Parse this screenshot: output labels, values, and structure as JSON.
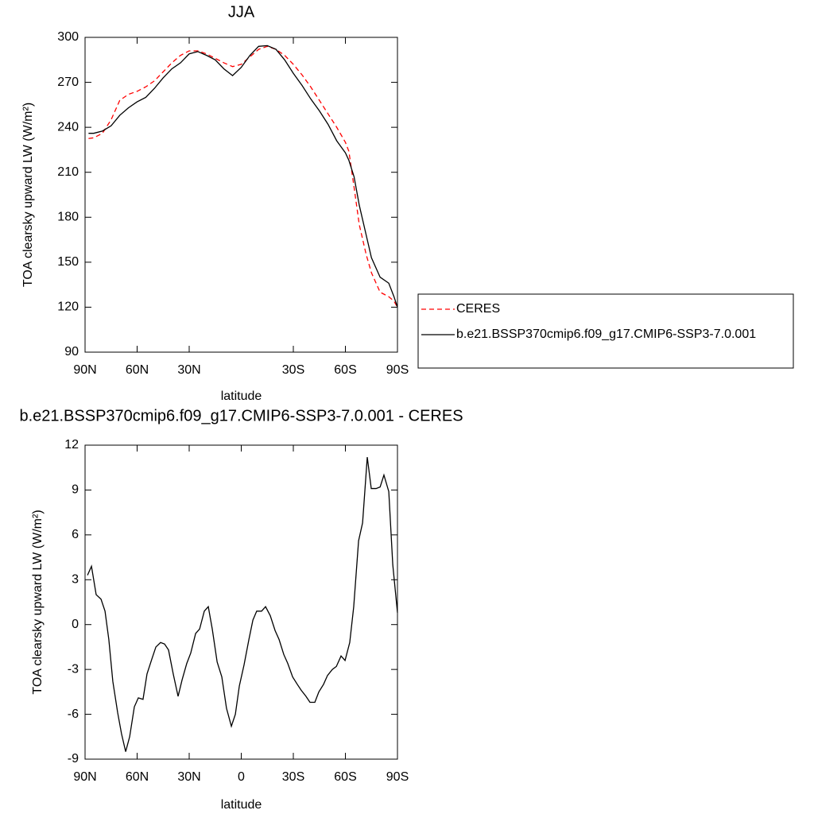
{
  "chart_data": [
    {
      "type": "line",
      "title": "JJA",
      "xlabel": "latitude",
      "ylabel": "TOA clearsky upward LW (W/m²)",
      "x": [
        88,
        85,
        80,
        75,
        70,
        65,
        60,
        55,
        50,
        45,
        40,
        35,
        30,
        25,
        20,
        15,
        10,
        5,
        0,
        -5,
        -10,
        -15,
        -20,
        -25,
        -30,
        -35,
        -40,
        -45,
        -50,
        -55,
        -60,
        -62,
        -65,
        -68,
        -72,
        -75,
        -80,
        -85,
        -88,
        -90
      ],
      "series": [
        {
          "name": "CERES",
          "color": "#ff0000",
          "style": "dashed",
          "values": [
            232.5,
            233,
            236,
            245,
            258,
            262,
            264,
            267,
            271,
            277,
            283,
            288,
            291,
            291,
            289,
            286,
            283,
            280.5,
            282,
            287,
            292,
            294,
            292,
            288,
            282,
            275,
            267,
            258,
            249,
            240,
            230,
            224,
            200,
            175,
            155,
            143,
            130,
            127,
            124,
            120
          ]
        },
        {
          "name": "b.e21.BSSP370cmip6.f09_g17.CMIP6-SSP3-7.0.001",
          "color": "#000000",
          "style": "solid",
          "values": [
            236,
            236,
            237.5,
            241,
            248,
            253,
            257,
            260,
            266,
            273,
            279,
            283,
            289,
            290.5,
            288,
            285,
            279,
            274.5,
            280,
            288,
            294,
            294.5,
            292,
            285,
            276,
            268,
            259,
            251,
            242,
            231,
            223,
            218,
            207,
            188,
            168,
            153,
            140,
            136,
            127,
            120
          ]
        }
      ],
      "xlim": [
        90,
        -90
      ],
      "xticks": [
        {
          "value": 90,
          "label": "90N"
        },
        {
          "value": 60,
          "label": "60N"
        },
        {
          "value": 30,
          "label": "30N"
        },
        {
          "value": -30,
          "label": "30S"
        },
        {
          "value": -60,
          "label": "60S"
        },
        {
          "value": -90,
          "label": "90S"
        }
      ],
      "ylim": [
        90,
        300
      ],
      "yticks": [
        90,
        120,
        150,
        180,
        210,
        240,
        270,
        300
      ],
      "legend": "right"
    },
    {
      "type": "line",
      "title": "b.e21.BSSP370cmip6.f09_g17.CMIP6-SSP3-7.0.001 - CERES",
      "xlabel": "latitude",
      "ylabel": "TOA clearsky upward LW (W/m²)",
      "x": [
        88.6,
        86.3,
        83.6,
        80.8,
        78.5,
        76.3,
        74,
        71.2,
        69,
        66.6,
        64.3,
        61.6,
        59.3,
        56.6,
        54.3,
        51.5,
        49.2,
        46.5,
        44.2,
        41.9,
        39.2,
        36.4,
        34.1,
        31.4,
        29.1,
        26.3,
        24,
        21.3,
        19,
        16.7,
        13.9,
        11.2,
        8.5,
        5.7,
        3.4,
        1.1,
        -1.6,
        -4.4,
        -6.7,
        -8.9,
        -11.7,
        -14,
        -16.7,
        -19.5,
        -21.8,
        -24.5,
        -26.8,
        -29.6,
        -32.3,
        -34.6,
        -37.3,
        -39.6,
        -42.4,
        -44.7,
        -47.4,
        -49.7,
        -52.5,
        -54.8,
        -57.5,
        -59.8,
        -62.5,
        -64.8,
        -67.6,
        -69.9,
        -72.6,
        -74.9,
        -77.7,
        -80,
        -82.2,
        -85,
        -87.3,
        -90
      ],
      "color": "#000000",
      "values": [
        3.3,
        3.9,
        2.0,
        1.7,
        0.9,
        -1.0,
        -3.8,
        -5.9,
        -7.3,
        -8.5,
        -7.5,
        -5.5,
        -4.9,
        -5.0,
        -3.3,
        -2.3,
        -1.5,
        -1.2,
        -1.3,
        -1.7,
        -3.3,
        -4.8,
        -3.7,
        -2.6,
        -1.9,
        -0.6,
        -0.3,
        0.9,
        1.2,
        -0.3,
        -2.5,
        -3.5,
        -5.6,
        -6.8,
        -6.0,
        -4.1,
        -2.7,
        -1.0,
        0.3,
        0.9,
        0.9,
        1.2,
        0.6,
        -0.4,
        -1.0,
        -2.0,
        -2.6,
        -3.5,
        -4.0,
        -4.4,
        -4.8,
        -5.2,
        -5.2,
        -4.5,
        -4.0,
        -3.4,
        -3.0,
        -2.8,
        -2.1,
        -2.4,
        -1.2,
        1.2,
        5.6,
        6.8,
        11.2,
        9.1,
        9.1,
        9.2,
        10.0,
        8.9,
        4.0,
        0.8
      ],
      "xlim": [
        90,
        -90
      ],
      "xticks": [
        {
          "value": 90,
          "label": "90N"
        },
        {
          "value": 60,
          "label": "60N"
        },
        {
          "value": 30,
          "label": "30N"
        },
        0,
        {
          "value": -30,
          "label": "30S"
        },
        {
          "value": -60,
          "label": "60S"
        },
        {
          "value": -90,
          "label": "90S"
        }
      ],
      "ylim": [
        -9,
        12
      ],
      "yticks": [
        -9,
        -6,
        -3,
        0,
        3,
        6,
        9,
        12
      ]
    }
  ]
}
